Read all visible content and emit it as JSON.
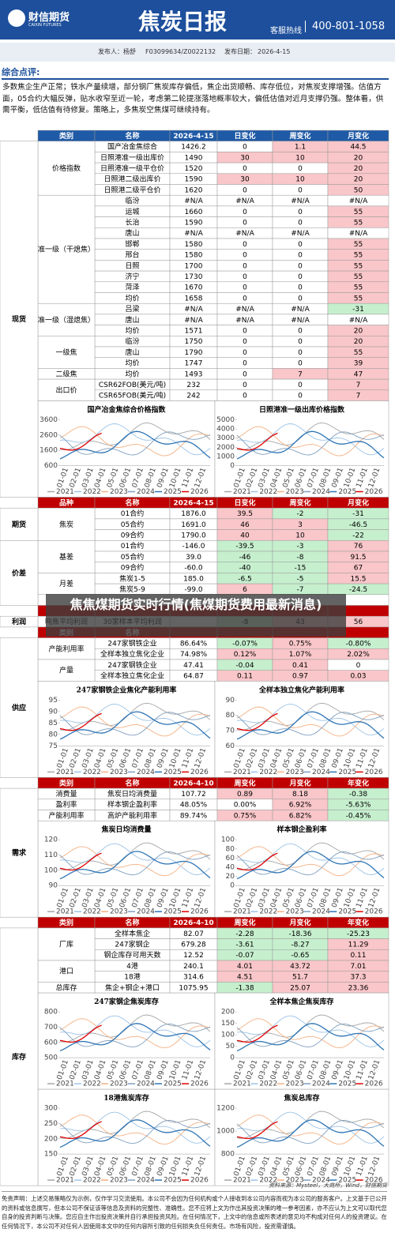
{
  "header": {
    "logo": "财信期货",
    "logo_en": "CAIXIN FUTURES",
    "title": "焦炭日报",
    "hotline_label": "客服热线",
    "hotline": "400-801-1058"
  },
  "info": {
    "publisher_label": "发布人：",
    "publisher": "杨舒",
    "license": "F03099634/Z0022132",
    "date_label": "发布日期：",
    "date": "2026-4-15"
  },
  "comment": {
    "heading": "综合点评:",
    "text": "多数焦企生产正常；铁水产量续增，部分钢厂焦炭库存偏低，焦企出货顺畅、库存低位，对焦炭支撑增强。估值方面，05合约大幅反弹，贴水收窄至近一轮，考虑第二轮提涨落地概率较大，偏低估值对近月支撑仍强。整体看，供需平衡，低估值有待修复。策略上，多焦炭空焦煤可继续持有。"
  },
  "legend": {
    "years": [
      "2021",
      "2022",
      "2023",
      "2024",
      "2025",
      "2026"
    ],
    "colors": [
      "#a6a6a6",
      "#9dc3e6",
      "#f4b183",
      "#7f9fbf",
      "#2e75b6",
      "#e00000"
    ]
  },
  "xticks": [
    "01-01",
    "02-01",
    "03-01",
    "04-01",
    "05-01",
    "06-01",
    "07-01",
    "08-01",
    "09-01",
    "10-01",
    "11-01",
    "12-01"
  ],
  "sections": [
    {
      "label": "现货",
      "header_color": "#1f5aa6",
      "header": [
        "类别",
        "名称",
        "2026-4-15",
        "日变化",
        "周变化",
        "月变化"
      ],
      "groups": [
        {
          "label": "价格指数",
          "rows": [
            [
              "国产冶金焦综合",
              "1426.2",
              "0",
              "1.1",
              "44.5"
            ],
            [
              "日照港准一级出库价",
              "1490",
              "30",
              "10",
              "20"
            ],
            [
              "日照港准一级平仓价",
              "1520",
              "0",
              "0",
              "20"
            ],
            [
              "日照港二级出库价",
              "1590",
              "30",
              "10",
              "20"
            ],
            [
              "日照港二级平仓价",
              "1620",
              "0",
              "0",
              "50"
            ]
          ]
        },
        {
          "label": "准一级（干熄焦）",
          "rows": [
            [
              "临汾",
              "#N/A",
              "#N/A",
              "#N/A",
              "#N/A"
            ],
            [
              "运城",
              "1660",
              "0",
              "0",
              "55"
            ],
            [
              "长治",
              "1590",
              "0",
              "0",
              "55"
            ],
            [
              "唐山",
              "#N/A",
              "#N/A",
              "#N/A",
              "#N/A"
            ],
            [
              "邯郸",
              "1580",
              "0",
              "0",
              "55"
            ],
            [
              "邢台",
              "1580",
              "0",
              "0",
              "55"
            ],
            [
              "日照",
              "1700",
              "0",
              "0",
              "55"
            ],
            [
              "济宁",
              "1730",
              "0",
              "0",
              "55"
            ],
            [
              "菏泽",
              "1670",
              "0",
              "0",
              "55"
            ],
            [
              "均价",
              "1658",
              "0",
              "0",
              "55"
            ]
          ]
        },
        {
          "label": "准一级（湿熄焦）",
          "rows": [
            [
              "吕梁",
              "#N/A",
              "#N/A",
              "#N/A",
              "-31"
            ],
            [
              "唐山",
              "#N/A",
              "#N/A",
              "#N/A",
              "#N/A"
            ],
            [
              "均价",
              "1571",
              "0",
              "0",
              "20"
            ]
          ]
        },
        {
          "label": "一级焦",
          "rows": [
            [
              "临汾",
              "1750",
              "0",
              "0",
              "20"
            ],
            [
              "唐山",
              "1790",
              "0",
              "0",
              "55"
            ],
            [
              "均价",
              "1747",
              "0",
              "0",
              "39"
            ]
          ]
        },
        {
          "label": "二级焦",
          "rows": [
            [
              "均价",
              "1493",
              "0",
              "7",
              "47"
            ]
          ]
        },
        {
          "label": "出口价",
          "rows": [
            [
              "CSR62FOB(美元/吨)",
              "232",
              "0",
              "0",
              "7"
            ],
            [
              "CSR65FOB(美元/吨)",
              "242",
              "0",
              "0",
              "7"
            ]
          ]
        }
      ],
      "charts": [
        {
          "title": "国产冶金焦综合价格指数",
          "ylim": [
            600,
            3600
          ],
          "yticks": [
            3600,
            2600,
            1600,
            600
          ]
        },
        {
          "title": "日照港准一级出库价格指数",
          "ylim": [
            0,
            5000
          ],
          "yticks": [
            5000,
            4000,
            3000,
            2000,
            1000,
            0
          ]
        }
      ]
    },
    {
      "label": "期货",
      "header_color": "#c00000",
      "header": [
        "品种",
        "名称",
        "2026-4-15",
        "日变化",
        "周变化",
        "月变化"
      ],
      "groups": [
        {
          "label": "焦炭",
          "rows": [
            [
              "01合约",
              "1876.0",
              "39.5",
              "-2",
              "-31"
            ],
            [
              "05合约",
              "1691.0",
              "46",
              "3",
              "-46.5"
            ],
            [
              "09合约",
              "1790.0",
              "40",
              "10",
              "-22"
            ]
          ]
        }
      ]
    },
    {
      "label": "价差",
      "groups": [
        {
          "label": "基差",
          "rows": [
            [
              "01合约",
              "-146.0",
              "-39.5",
              "-3",
              "76"
            ],
            [
              "05合约",
              "39.0",
              "-46",
              "-8",
              "91.5"
            ],
            [
              "09合约",
              "-60.0",
              "-40",
              "-15",
              "67"
            ]
          ]
        },
        {
          "label": "月差",
          "rows": [
            [
              "焦炭1-5",
              "185.0",
              "-6.5",
              "-5",
              "15.5"
            ],
            [
              "焦炭5-9",
              "-99.0",
              "6",
              "-7",
              "-24.5"
            ]
          ]
        }
      ]
    },
    {
      "label": "利润",
      "header_color": "#c00000",
      "groups": [
        {
          "label": "吨焦平均利润",
          "rows": [
            [
              "30家样本平均利润",
              null,
              "-8",
              "43",
              "56"
            ]
          ]
        }
      ]
    },
    {
      "label": "供应",
      "header_color": "#c00000",
      "header": [
        "类别",
        "名称"
      ],
      "groups": [
        {
          "label": "产能利用率",
          "rows": [
            [
              "247家钢铁企业",
              "86.64%",
              "-0.07%",
              "0.75%",
              "-0.80%"
            ],
            [
              "全样本独立焦化企业",
              "74.98%",
              "0.12%",
              "1.07%",
              "2.02%"
            ]
          ]
        },
        {
          "label": "产量",
          "rows": [
            [
              "247家钢铁企业",
              "47.41",
              "-0.04",
              "0.41",
              "0"
            ],
            [
              "全样本独立焦化企业",
              "64.87",
              "0.11",
              "0.97",
              "0.03"
            ]
          ]
        }
      ],
      "charts": [
        {
          "title": "247家钢铁企业焦化产能利用率",
          "ylim": [
            75,
            95
          ],
          "yticks": [
            95,
            90,
            85,
            80,
            75
          ]
        },
        {
          "title": "全样本独立焦化产能利用率",
          "ylim": [
            60,
            90
          ],
          "yticks": [
            90,
            80,
            70,
            60
          ]
        }
      ]
    },
    {
      "label": "需求",
      "header_color": "#c00000",
      "header": [
        "类别",
        "名称",
        "2026-4-10",
        "周变化",
        "月变化",
        "年变化"
      ],
      "groups": [
        {
          "label": "消费量",
          "rows": [
            [
              "焦炭日均消费量",
              "107.72",
              "0.89",
              "8.18",
              "-0.38"
            ]
          ]
        },
        {
          "label": "盈利率",
          "rows": [
            [
              "样本钢企盈利率",
              "48.05%",
              "0.00%",
              "6.92%",
              "-5.63%"
            ]
          ]
        },
        {
          "label": "产能利用率",
          "rows": [
            [
              "高炉产能利用率",
              "89.74%",
              "0.75%",
              "6.82%",
              "-0.45%"
            ]
          ]
        }
      ],
      "charts": [
        {
          "title": "焦炭日均消费量",
          "ylim": [
            90,
            120
          ],
          "yticks": [
            120,
            110,
            100,
            90
          ]
        },
        {
          "title": "样本钢企盈利率",
          "ylim": [
            0,
            100
          ],
          "yticks": [
            100,
            80,
            60,
            40,
            20,
            0
          ]
        }
      ]
    },
    {
      "label": "库存",
      "header_color": "#c00000",
      "header": [
        "类别",
        "名称",
        "2026-4-10",
        "周变化",
        "月变化",
        "年变化"
      ],
      "groups": [
        {
          "label": "厂库",
          "rows": [
            [
              "全样本焦企",
              "82.07",
              "-2.28",
              "-18.36",
              "-25.23"
            ],
            [
              "247家钢企",
              "679.28",
              "-3.61",
              "-8.27",
              "11.29"
            ],
            [
              "钢企库存可用天数",
              "12.52",
              "-0.07",
              "-0.65",
              "0.11"
            ]
          ]
        },
        {
          "label": "港口",
          "rows": [
            [
              "4港",
              "240.1",
              "4.01",
              "43.72",
              "7.01"
            ],
            [
              "18港",
              "314.6",
              "4.51",
              "51.7",
              "37.3"
            ]
          ]
        },
        {
          "label": "总库存",
          "rows": [
            [
              "焦企+钢企+港口",
              "1075.95",
              "-1.38",
              "25.07",
              "23.36"
            ]
          ]
        }
      ],
      "charts": [
        {
          "title": "247家钢企焦炭库存",
          "ylim": [
            500,
            800
          ],
          "yticks": [
            800,
            700,
            600,
            500
          ]
        },
        {
          "title": "全样本焦企焦炭库存",
          "ylim": [
            0,
            200
          ],
          "yticks": [
            200,
            150,
            100,
            50,
            0
          ]
        },
        {
          "title": "18港焦炭库存",
          "ylim": [
            150,
            300
          ],
          "yticks": [
            300,
            250,
            200,
            150
          ]
        },
        {
          "title": "焦炭总库存",
          "ylim": [
            800,
            1200
          ],
          "yticks": [
            1200,
            1000,
            800
          ]
        }
      ]
    }
  ],
  "overlay": "焦焦煤期货实时行情(焦煤期货费用最新消息)",
  "footer": {
    "source": "资料来源：Mysteel，大商所，Wind，财信期货",
    "disclaimer": "免责声明：上述交易策略仅为示例，仅作学习交流使用。本公司不会因为任何机构或个人接收到本公司内容而视为本公司的服务客户。上文基于已公开的资料或信息撰写，但本公司不保证该等信息及资料的完整性、准确性。您不应将上文为作出其投资决策的唯一参考因素，亦不应认为上文可以取代您自身的投资判断与决策。您应自主作出投资决策并自行承担投资风险。在任何情况下，上文中的信息或所表述的意见均不构成对任何人的投资建议。在任何情况下，本公司不对任何人因使用本文中的任何内容所引致的任何损失负任何责任。市场有风险，投资需谨慎。"
  }
}
